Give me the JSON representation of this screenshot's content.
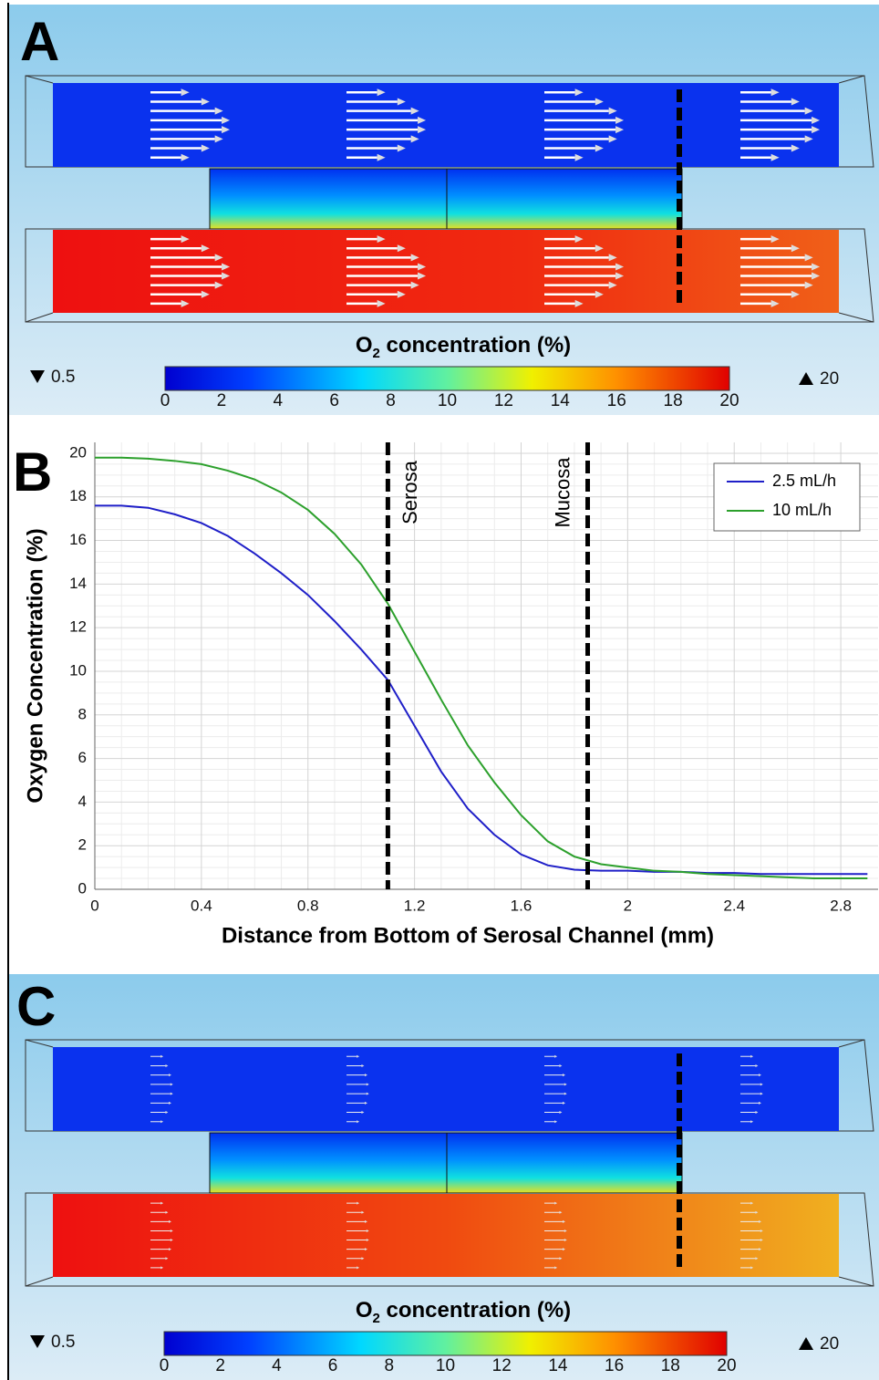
{
  "panel_a": {
    "label": "A",
    "colorbar": {
      "title": {
        "base": "O",
        "sub": "2",
        "rest": " concentration (%)"
      },
      "min": 0.5,
      "max": 20,
      "lim": [
        0,
        20
      ],
      "ticks": [
        0,
        2,
        4,
        6,
        8,
        10,
        12,
        14,
        16,
        18,
        20
      ]
    }
  },
  "panel_b": {
    "label": "B"
  },
  "panel_c": {
    "label": "C",
    "colorbar": {
      "title": {
        "base": "O",
        "sub": "2",
        "rest": " concentration (%)"
      },
      "min": 0.5,
      "max": 20,
      "lim": [
        0,
        20
      ],
      "ticks": [
        0,
        2,
        4,
        6,
        8,
        10,
        12,
        14,
        16,
        18,
        20
      ]
    }
  },
  "chart_data": {
    "type": "line",
    "x_label": "Distance from Bottom of Serosal Channel (mm)",
    "y_label": "Oxygen Concentration (%)",
    "x": [
      0,
      0.1,
      0.2,
      0.3,
      0.4,
      0.5,
      0.6,
      0.7,
      0.8,
      0.9,
      1.0,
      1.1,
      1.2,
      1.3,
      1.4,
      1.5,
      1.6,
      1.7,
      1.8,
      1.9,
      2.0,
      2.1,
      2.2,
      2.3,
      2.4,
      2.5,
      2.6,
      2.7,
      2.8,
      2.9
    ],
    "series": [
      {
        "name": "2.5 mL/h",
        "color": "#1f1fc8",
        "values": [
          17.6,
          17.6,
          17.5,
          17.2,
          16.8,
          16.2,
          15.4,
          14.5,
          13.5,
          12.3,
          11.0,
          9.6,
          7.5,
          5.4,
          3.7,
          2.5,
          1.6,
          1.1,
          0.9,
          0.85,
          0.85,
          0.8,
          0.8,
          0.75,
          0.75,
          0.7,
          0.7,
          0.7,
          0.7,
          0.7
        ]
      },
      {
        "name": "10 mL/h",
        "color": "#2ca02c",
        "values": [
          19.8,
          19.8,
          19.75,
          19.65,
          19.5,
          19.2,
          18.8,
          18.2,
          17.4,
          16.3,
          14.9,
          13.1,
          10.9,
          8.7,
          6.6,
          4.9,
          3.4,
          2.2,
          1.5,
          1.15,
          1.0,
          0.85,
          0.8,
          0.7,
          0.65,
          0.6,
          0.55,
          0.5,
          0.5,
          0.5
        ]
      }
    ],
    "annotations": [
      {
        "text": "Serosa",
        "x": 1.1
      },
      {
        "text": "Mucosa",
        "x": 1.85
      }
    ],
    "xlim": [
      0,
      2.94
    ],
    "ylim": [
      0,
      20.5
    ],
    "xticks": [
      0,
      0.4,
      0.8,
      1.2,
      1.6,
      2,
      2.4,
      2.8
    ],
    "yticks": [
      0,
      2,
      4,
      6,
      8,
      10,
      12,
      14,
      16,
      18,
      20
    ],
    "grid": true,
    "legend": "upper-right"
  }
}
